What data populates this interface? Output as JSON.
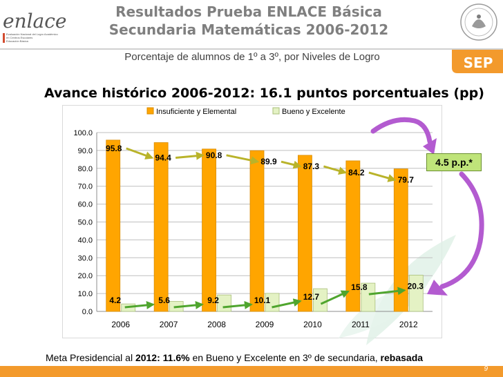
{
  "header": {
    "logo_text": "enlace",
    "logo_caption_1": "Evaluación Nacional del Logro Académico",
    "logo_caption_2": "en Centros Escolares",
    "logo_caption_3": "Educación Básica",
    "title_line1": "Resultados Prueba ENLACE Básica",
    "title_line2": "Secundaria Matemáticas 2006-2012",
    "subtitle": "Porcentaje de alumnos de 1º a 3º, por Niveles de Logro",
    "sep_label": "SEP"
  },
  "headline": "Avance histórico 2006-2012: 16.1 puntos porcentuales (pp)",
  "badge": "4.5 p.p.*",
  "footnote": {
    "part1": "Meta Presidencial al ",
    "bold1": "2012: 11.6%",
    "part2": "  en Bueno y Excelente  en 3º de secundaria, ",
    "bold2": "rebasada"
  },
  "page_number": "9",
  "colors": {
    "series1": "#ffa500",
    "series2": "#e4f2c4",
    "arrow_yellow": "#b9b32a",
    "arrow_green": "#4fa52e",
    "bottom_bar": "#f39a2c",
    "purple": "#b35bd0"
  },
  "chart_data": {
    "type": "bar",
    "categories": [
      "2006",
      "2007",
      "2008",
      "2009",
      "2010",
      "2011",
      "2012"
    ],
    "series": [
      {
        "name": "Insuficiente y Elemental",
        "values": [
          95.8,
          94.4,
          90.8,
          89.9,
          87.3,
          84.2,
          79.7
        ]
      },
      {
        "name": "Bueno y Excelente",
        "values": [
          4.2,
          5.6,
          9.2,
          10.1,
          12.7,
          15.8,
          20.3
        ]
      }
    ],
    "ylim": [
      0,
      100
    ],
    "yticks": [
      "0.0",
      "10.0",
      "20.0",
      "30.0",
      "40.0",
      "50.0",
      "60.0",
      "70.0",
      "80.0",
      "90.0",
      "100.0"
    ],
    "data_labels_s1": [
      "95.8",
      "94.4",
      "90.8",
      "89.9",
      "87.3",
      "84.2",
      "79.7"
    ],
    "data_labels_s2": [
      "4.2",
      "5.6",
      "9.2",
      "10.1",
      "12.7",
      "15.8",
      "20.3"
    ],
    "grid": true,
    "legend": "top"
  }
}
